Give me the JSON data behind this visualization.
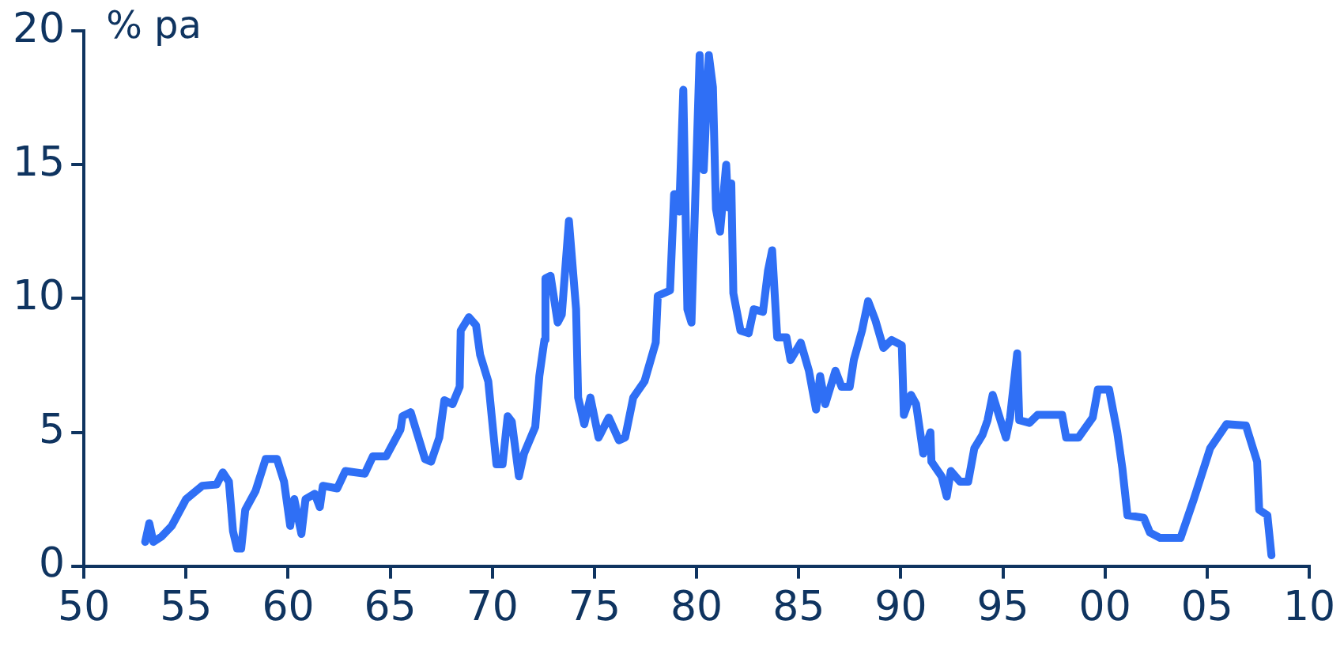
{
  "chart_data": {
    "type": "line",
    "ylabel": "% pa",
    "grid": false,
    "legend": false,
    "marker": "none",
    "line_style": "solid",
    "xlim": [
      1950,
      2010
    ],
    "xticks": [
      {
        "value": 1950,
        "label": "50"
      },
      {
        "value": 1955,
        "label": "55"
      },
      {
        "value": 1960,
        "label": "60"
      },
      {
        "value": 1965,
        "label": "65"
      },
      {
        "value": 1970,
        "label": "70"
      },
      {
        "value": 1975,
        "label": "75"
      },
      {
        "value": 1980,
        "label": "80"
      },
      {
        "value": 1985,
        "label": "85"
      },
      {
        "value": 1990,
        "label": "90"
      },
      {
        "value": 1995,
        "label": "95"
      },
      {
        "value": 2000,
        "label": "00"
      },
      {
        "value": 2005,
        "label": "05"
      },
      {
        "value": 2010,
        "label": "10"
      }
    ],
    "ylim": [
      0,
      20
    ],
    "yticks": [
      0,
      5,
      10,
      15,
      20
    ],
    "x": [
      1953.0,
      1953.2,
      1953.4,
      1953.8,
      1954.3,
      1955.0,
      1955.8,
      1956.5,
      1956.8,
      1957.1,
      1957.3,
      1957.5,
      1957.7,
      1957.9,
      1958.4,
      1958.9,
      1959.45,
      1959.8,
      1960.1,
      1960.3,
      1960.65,
      1960.85,
      1961.3,
      1961.55,
      1961.7,
      1962.4,
      1962.8,
      1963.75,
      1964.15,
      1964.8,
      1965.5,
      1965.6,
      1966.0,
      1966.3,
      1966.7,
      1967.0,
      1967.4,
      1967.65,
      1968.05,
      1968.4,
      1968.45,
      1968.85,
      1969.2,
      1969.4,
      1969.8,
      1970.2,
      1970.5,
      1970.75,
      1970.95,
      1971.3,
      1971.55,
      1972.1,
      1972.3,
      1972.55,
      1972.6,
      1972.85,
      1973.2,
      1973.4,
      1973.75,
      1974.1,
      1974.2,
      1974.5,
      1974.8,
      1975.2,
      1975.7,
      1976.2,
      1976.5,
      1976.9,
      1977.45,
      1978.0,
      1978.1,
      1978.7,
      1978.9,
      1979.0,
      1979.15,
      1979.35,
      1979.55,
      1979.75,
      1980.15,
      1980.35,
      1980.6,
      1980.8,
      1980.95,
      1981.15,
      1981.45,
      1981.55,
      1981.7,
      1981.8,
      1982.15,
      1982.55,
      1982.8,
      1983.25,
      1983.5,
      1983.7,
      1983.95,
      1984.4,
      1984.6,
      1985.1,
      1985.5,
      1985.85,
      1986.05,
      1986.3,
      1986.8,
      1987.1,
      1987.5,
      1987.7,
      1988.1,
      1988.4,
      1988.75,
      1989.15,
      1989.55,
      1990.05,
      1990.15,
      1990.5,
      1990.75,
      1991.1,
      1991.45,
      1991.5,
      1992.0,
      1992.25,
      1992.45,
      1992.9,
      1993.3,
      1993.6,
      1994.0,
      1994.25,
      1994.5,
      1994.8,
      1995.15,
      1995.35,
      1995.7,
      1995.8,
      1996.3,
      1996.7,
      1997.9,
      1998.1,
      1998.7,
      1999.4,
      1999.65,
      2000.2,
      2000.6,
      2000.85,
      2001.1,
      2001.9,
      2002.2,
      2002.7,
      2003.7,
      2004.35,
      2005.15,
      2005.95,
      2006.9,
      2007.45,
      2007.55,
      2007.95,
      2008.15
    ],
    "series": [
      {
        "color": "#2f6ff5",
        "values": [
          0.9,
          1.6,
          0.9,
          1.1,
          1.5,
          2.5,
          3.0,
          3.05,
          3.5,
          3.15,
          1.3,
          0.65,
          0.65,
          2.1,
          2.8,
          4.0,
          4.0,
          3.15,
          1.5,
          2.5,
          1.2,
          2.5,
          2.7,
          2.2,
          3.0,
          2.9,
          3.55,
          3.45,
          4.1,
          4.1,
          5.1,
          5.6,
          5.75,
          5.0,
          4.0,
          3.9,
          4.8,
          6.2,
          6.05,
          6.7,
          8.8,
          9.3,
          9.0,
          7.9,
          6.9,
          3.8,
          3.8,
          5.6,
          5.4,
          3.35,
          4.2,
          5.2,
          7.1,
          8.45,
          10.75,
          10.85,
          9.1,
          9.4,
          12.9,
          9.6,
          6.3,
          5.3,
          6.3,
          4.8,
          5.55,
          4.7,
          4.8,
          6.3,
          6.9,
          8.35,
          10.1,
          10.3,
          13.9,
          13.9,
          13.25,
          17.8,
          9.6,
          9.1,
          19.1,
          14.8,
          19.1,
          17.9,
          13.35,
          12.5,
          15.0,
          13.4,
          14.3,
          10.2,
          8.8,
          8.7,
          9.6,
          9.5,
          11.05,
          11.8,
          8.55,
          8.55,
          7.7,
          8.35,
          7.3,
          5.85,
          7.1,
          6.05,
          7.3,
          6.7,
          6.7,
          7.7,
          8.8,
          9.9,
          9.2,
          8.15,
          8.45,
          8.25,
          5.65,
          6.4,
          6.05,
          4.2,
          5.0,
          3.9,
          3.35,
          2.6,
          3.55,
          3.15,
          3.15,
          4.4,
          4.9,
          5.45,
          6.4,
          5.65,
          4.8,
          5.55,
          7.95,
          5.45,
          5.35,
          5.65,
          5.65,
          4.8,
          4.8,
          5.55,
          6.6,
          6.6,
          5.0,
          3.65,
          1.9,
          1.8,
          1.25,
          1.05,
          1.05,
          2.5,
          4.4,
          5.3,
          5.25,
          3.9,
          2.1,
          1.9,
          0.4
        ]
      }
    ]
  }
}
